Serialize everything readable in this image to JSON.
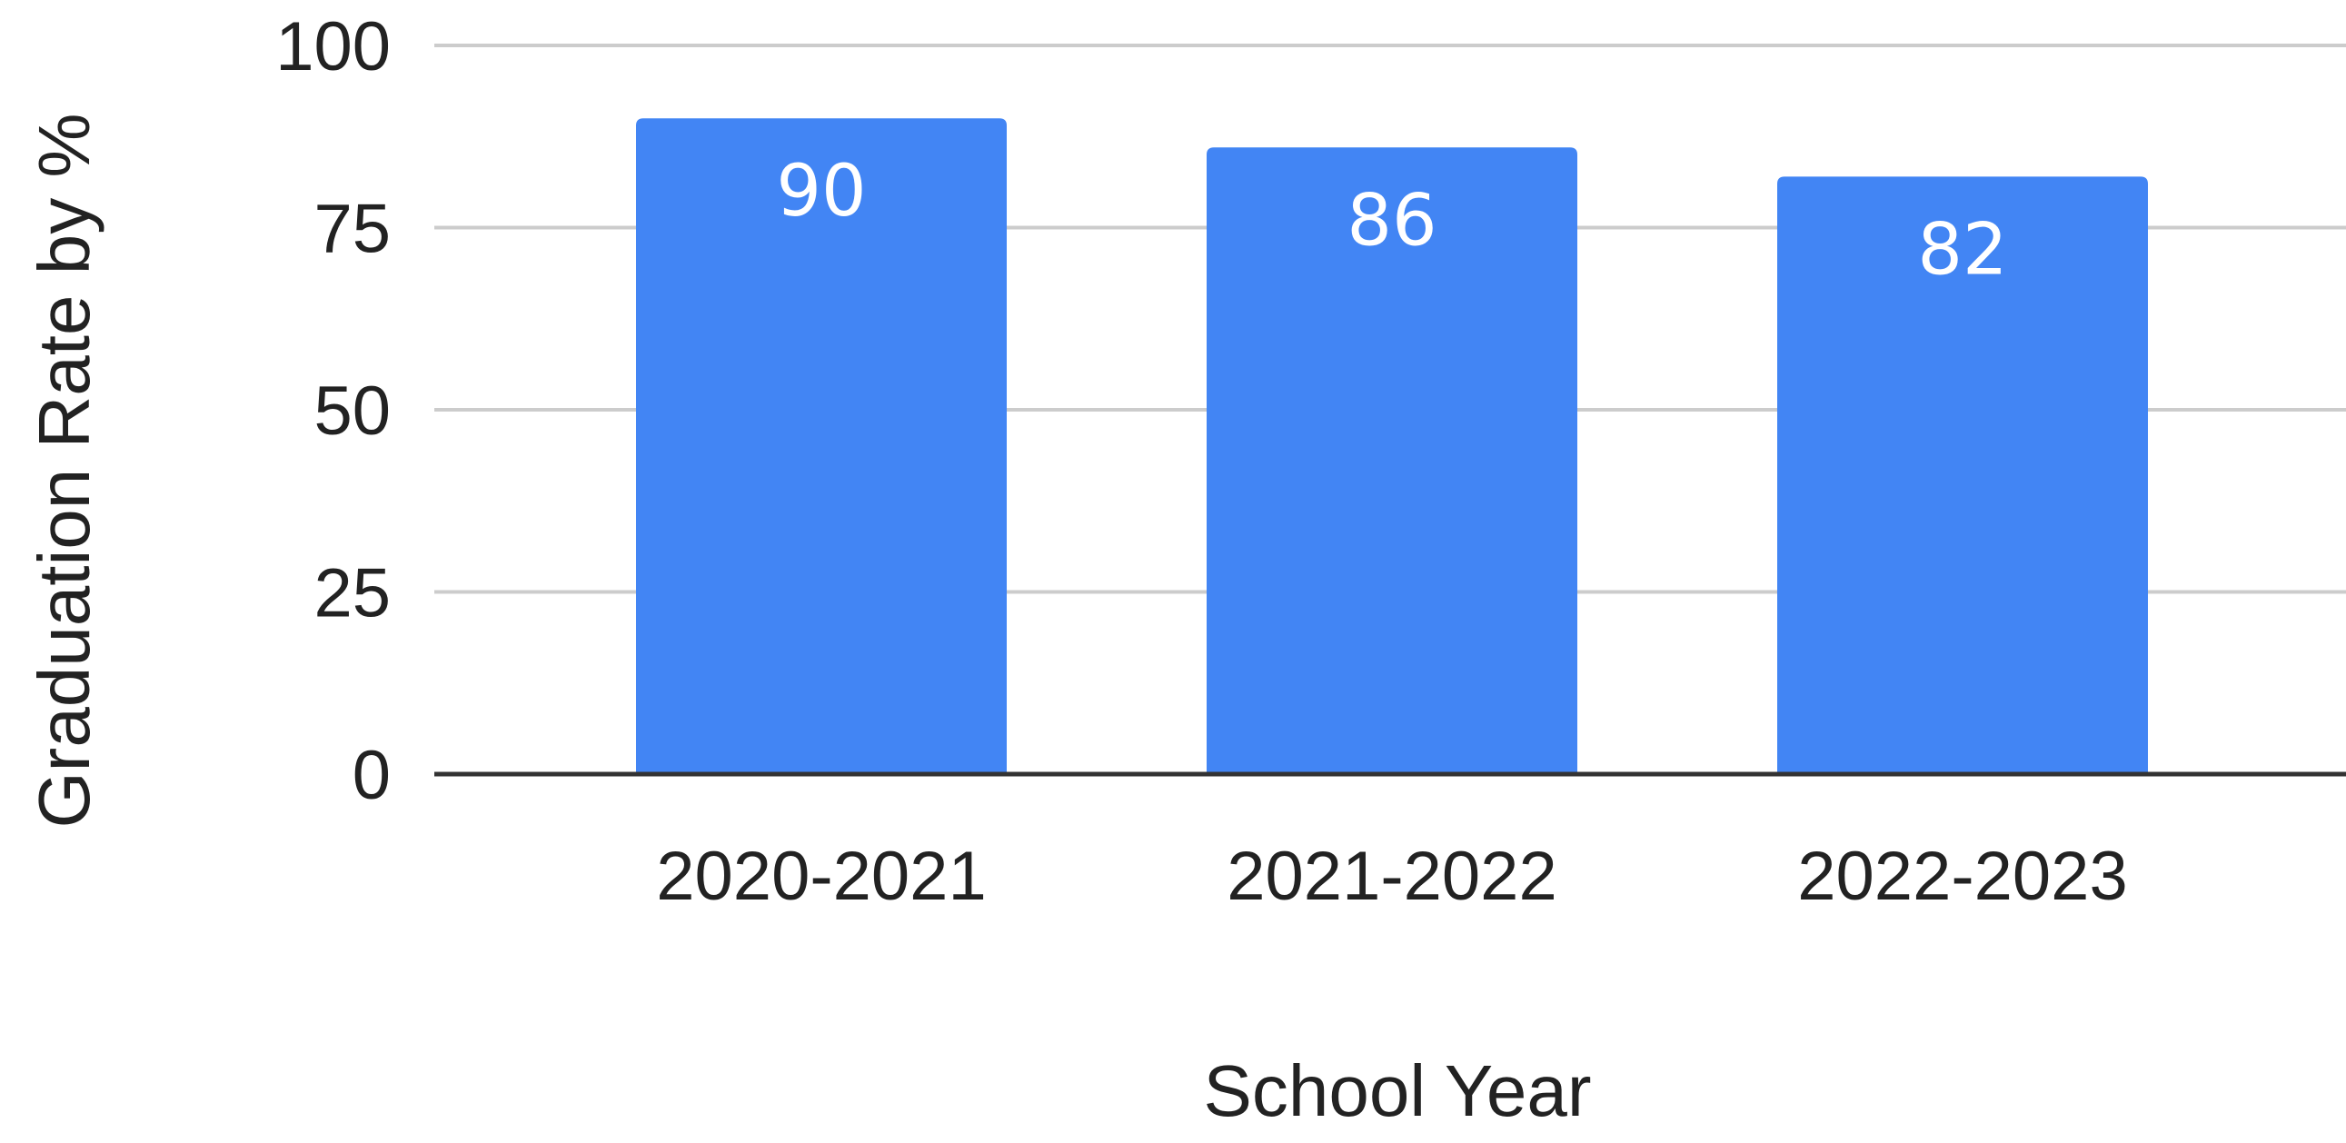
{
  "chart_data": {
    "type": "bar",
    "categories": [
      "2020-2021",
      "2021-2022",
      "2022-2023"
    ],
    "values": [
      90,
      86,
      82
    ],
    "data_labels": [
      "90",
      "86",
      "82"
    ],
    "title": "",
    "xlabel": "School Year",
    "ylabel": "Graduation Rate by %",
    "ylim": [
      0,
      100
    ],
    "yticks": [
      0,
      25,
      50,
      75,
      100
    ],
    "ytick_labels": [
      "0",
      "25",
      "50",
      "75",
      "100"
    ],
    "grid": true,
    "legend": "none",
    "colors": {
      "bar": "#4285f4",
      "grid": "#cccccc",
      "baseline": "#333333",
      "data_label": "#ffffff",
      "text": "#222222"
    }
  }
}
